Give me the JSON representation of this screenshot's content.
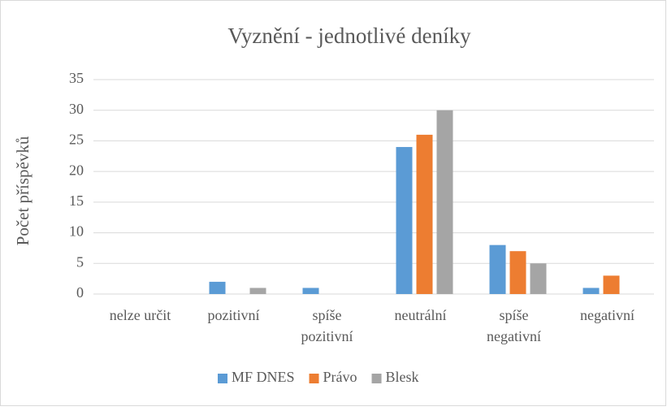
{
  "chart_data": {
    "type": "bar",
    "title": "Vyznění - jednotlivé deníky",
    "y_label": "Počet příspěvků",
    "categories": [
      "nelze určit",
      "pozitivní",
      "spíše pozitivní",
      "neutrální",
      "spíše negativní",
      "negativní"
    ],
    "series": [
      {
        "name": "MF DNES",
        "color": "#5b9bd5",
        "values": [
          0,
          2,
          1,
          24,
          8,
          1
        ]
      },
      {
        "name": "Právo",
        "color": "#ed7d31",
        "values": [
          0,
          0,
          0,
          26,
          7,
          3
        ]
      },
      {
        "name": "Blesk",
        "color": "#a5a5a5",
        "values": [
          0,
          1,
          0,
          30,
          5,
          0
        ]
      }
    ],
    "ylim": [
      0,
      35
    ],
    "yticks": [
      0,
      5,
      10,
      15,
      20,
      25,
      30,
      35
    ],
    "grid": true,
    "legend": "bottom"
  }
}
